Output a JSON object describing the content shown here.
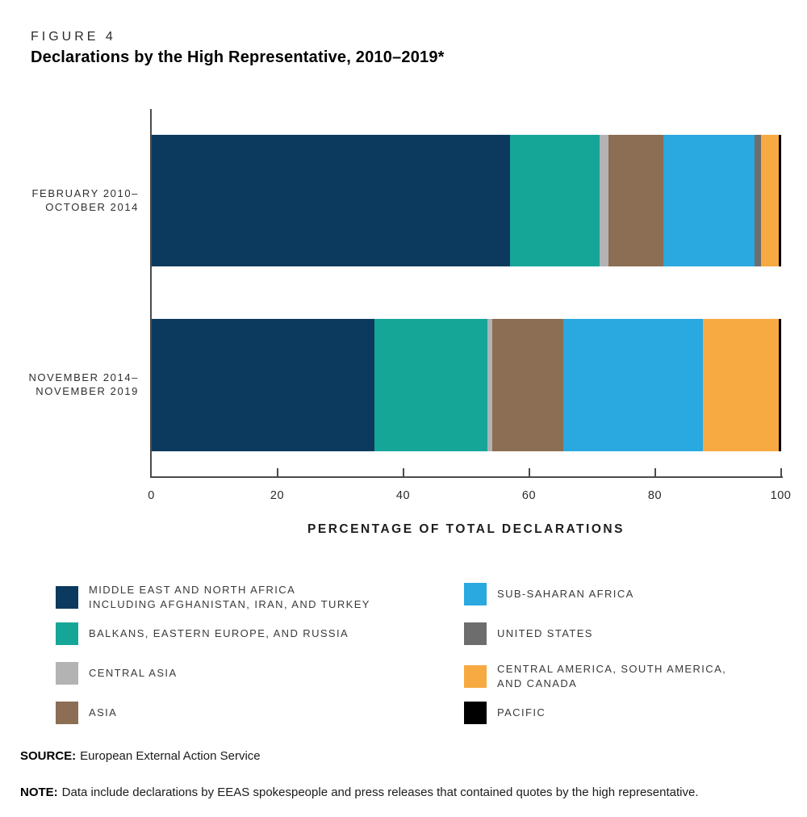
{
  "figure": {
    "label": "FIGURE 4",
    "title": "Declarations by the High Representative, 2010–2019*"
  },
  "chart_data": {
    "type": "bar",
    "orientation": "horizontal",
    "stacked": true,
    "units": "percent",
    "xlabel": "PERCENTAGE OF TOTAL DECLARATIONS",
    "xlim": [
      0,
      100
    ],
    "xticks": [
      0,
      20,
      40,
      60,
      80,
      100
    ],
    "categories": [
      "MIDDLE EAST AND NORTH AFRICA INCLUDING AFGHANISTAN, IRAN, AND TURKEY",
      "BALKANS, EASTERN EUROPE, AND RUSSIA",
      "CENTRAL ASIA",
      "ASIA",
      "SUB-SAHARAN AFRICA",
      "UNITED STATES",
      "CENTRAL AMERICA, SOUTH AMERICA, AND CANADA",
      "PACIFIC"
    ],
    "colors": [
      "#0c3a5e",
      "#16a698",
      "#b3b3b3",
      "#8b6e53",
      "#2aa8e0",
      "#6d6d6d",
      "#f7a942",
      "#000000"
    ],
    "series": [
      {
        "name": "FEBRUARY 2010–OCTOBER 2014",
        "label_lines": [
          "FEBRUARY 2010–",
          "OCTOBER 2014"
        ],
        "values": [
          56.9,
          14.2,
          1.5,
          8.7,
          14.5,
          1.0,
          2.8,
          0.4
        ]
      },
      {
        "name": "NOVEMBER 2014–NOVEMBER 2019",
        "label_lines": [
          "NOVEMBER 2014–",
          "NOVEMBER 2019"
        ],
        "values": [
          35.4,
          17.9,
          0.8,
          11.3,
          22.2,
          0.0,
          12.0,
          0.4
        ]
      }
    ],
    "legend_position": "bottom",
    "grid": false
  },
  "legend": {
    "columns": [
      {
        "items": [
          {
            "lines": [
              "MIDDLE EAST AND NORTH AFRICA",
              "INCLUDING AFGHANISTAN, IRAN, AND TURKEY"
            ],
            "color": "#0c3a5e"
          },
          {
            "lines": [
              "BALKANS, EASTERN EUROPE, AND RUSSIA"
            ],
            "color": "#16a698"
          },
          {
            "lines": [
              "CENTRAL ASIA"
            ],
            "color": "#b3b3b3"
          },
          {
            "lines": [
              "ASIA"
            ],
            "color": "#8b6e53"
          }
        ]
      },
      {
        "items": [
          {
            "lines": [
              "SUB-SAHARAN AFRICA"
            ],
            "color": "#2aa8e0"
          },
          {
            "lines": [
              "UNITED STATES"
            ],
            "color": "#6d6d6d"
          },
          {
            "lines": [
              "CENTRAL AMERICA, SOUTH AMERICA,",
              "AND CANADA"
            ],
            "color": "#f7a942"
          },
          {
            "lines": [
              "PACIFIC"
            ],
            "color": "#000000"
          }
        ]
      }
    ]
  },
  "source": {
    "label": "SOURCE:",
    "text": "European External Action Service"
  },
  "note": {
    "label": "NOTE:",
    "text": "Data include declarations by EEAS spokespeople and press releases that contained quotes by the high representative."
  }
}
